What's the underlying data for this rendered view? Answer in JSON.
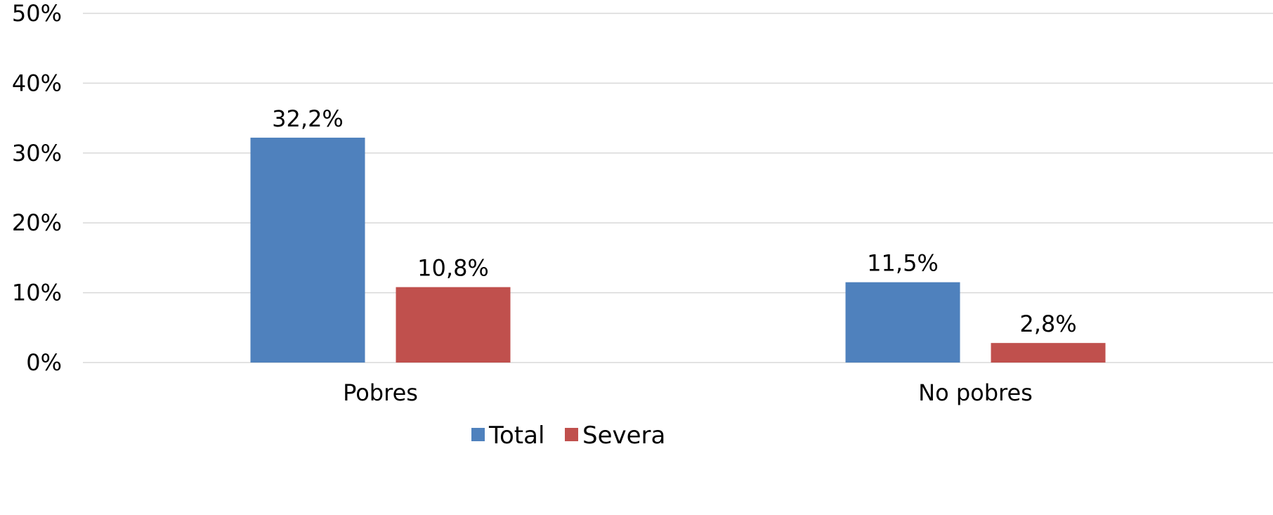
{
  "chart_data": {
    "type": "bar",
    "categories": [
      "Pobres",
      "No pobres"
    ],
    "series": [
      {
        "name": "Total",
        "values": [
          32.2,
          11.5
        ],
        "labels": [
          "32,2%",
          "11,5%"
        ],
        "color": "#4f81bd"
      },
      {
        "name": "Severa",
        "values": [
          10.8,
          2.8
        ],
        "labels": [
          "10,8%",
          "2,8%"
        ],
        "color": "#c0504d"
      }
    ],
    "title": "",
    "xlabel": "",
    "ylabel": "",
    "ylim": [
      0,
      50
    ],
    "yticks": [
      "0%",
      "10%",
      "20%",
      "30%",
      "40%",
      "50%"
    ],
    "grid": true,
    "legend_position": "bottom"
  }
}
